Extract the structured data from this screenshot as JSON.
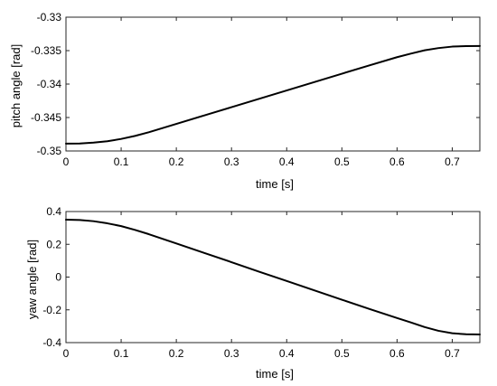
{
  "chart_data": [
    {
      "type": "line",
      "xlabel": "time  [s]",
      "ylabel": "pitch angle  [rad]",
      "xlim": [
        0,
        0.75
      ],
      "ylim": [
        -0.35,
        -0.33
      ],
      "xticks": [
        0,
        0.1,
        0.2,
        0.3,
        0.4,
        0.5,
        0.6,
        0.7
      ],
      "xtick_labels": [
        "0",
        "0.1",
        "0.2",
        "0.3",
        "0.4",
        "0.5",
        "0.6",
        "0.7"
      ],
      "yticks": [
        -0.35,
        -0.345,
        -0.34,
        -0.335,
        -0.33
      ],
      "ytick_labels": [
        "-0.35",
        "-0.345",
        "-0.34",
        "-0.335",
        "-0.33"
      ],
      "grid": false,
      "series": [
        {
          "color": "#000000",
          "x": [
            0,
            0.025,
            0.05,
            0.075,
            0.1,
            0.125,
            0.15,
            0.2,
            0.25,
            0.3,
            0.35,
            0.4,
            0.45,
            0.5,
            0.55,
            0.6,
            0.625,
            0.65,
            0.675,
            0.7,
            0.725,
            0.75
          ],
          "y": [
            -0.3489,
            -0.34888,
            -0.34875,
            -0.34855,
            -0.3482,
            -0.34775,
            -0.3472,
            -0.34595,
            -0.3447,
            -0.34345,
            -0.3422,
            -0.34095,
            -0.3397,
            -0.33845,
            -0.3372,
            -0.33598,
            -0.33545,
            -0.33495,
            -0.33462,
            -0.3344,
            -0.33432,
            -0.3343
          ]
        }
      ]
    },
    {
      "type": "line",
      "xlabel": "time  [s]",
      "ylabel": "yaw angle  [rad]",
      "xlim": [
        0,
        0.75
      ],
      "ylim": [
        -0.4,
        0.4
      ],
      "xticks": [
        0,
        0.1,
        0.2,
        0.3,
        0.4,
        0.5,
        0.6,
        0.7
      ],
      "xtick_labels": [
        "0",
        "0.1",
        "0.2",
        "0.3",
        "0.4",
        "0.5",
        "0.6",
        "0.7"
      ],
      "yticks": [
        -0.4,
        -0.2,
        0,
        0.2,
        0.4
      ],
      "ytick_labels": [
        "-0.4",
        "-0.2",
        "0",
        "0.2",
        "0.4"
      ],
      "grid": false,
      "series": [
        {
          "color": "#000000",
          "x": [
            0,
            0.025,
            0.05,
            0.075,
            0.1,
            0.125,
            0.15,
            0.2,
            0.25,
            0.3,
            0.35,
            0.4,
            0.45,
            0.5,
            0.55,
            0.6,
            0.625,
            0.65,
            0.675,
            0.7,
            0.725,
            0.75
          ],
          "y": [
            0.35,
            0.348,
            0.341,
            0.328,
            0.311,
            0.288,
            0.262,
            0.205,
            0.148,
            0.091,
            0.033,
            -0.024,
            -0.081,
            -0.138,
            -0.195,
            -0.25,
            -0.277,
            -0.305,
            -0.328,
            -0.343,
            -0.349,
            -0.35
          ]
        }
      ]
    }
  ]
}
